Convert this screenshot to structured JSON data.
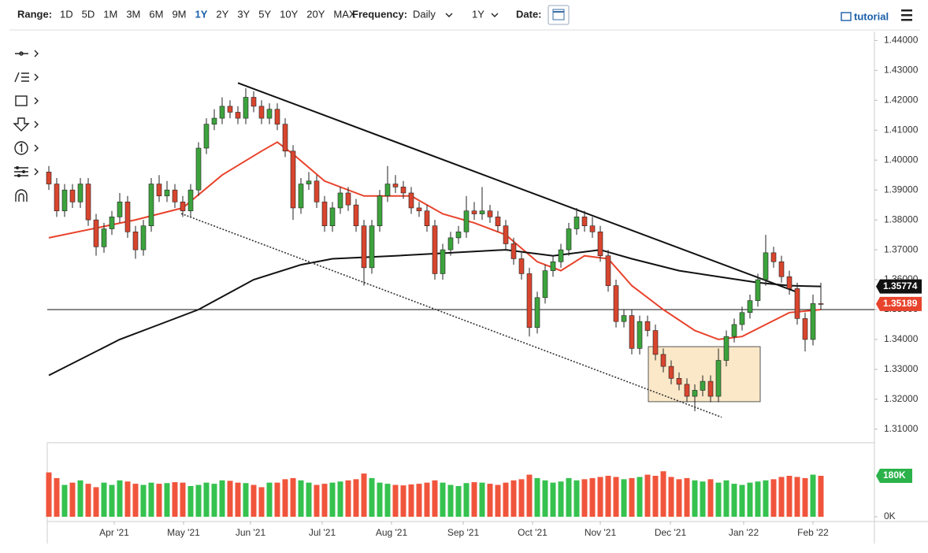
{
  "toolbar": {
    "range_label": "Range:",
    "ranges": [
      "1D",
      "5D",
      "1M",
      "3M",
      "6M",
      "9M",
      "1Y",
      "2Y",
      "3Y",
      "5Y",
      "10Y",
      "20Y",
      "MAX"
    ],
    "active_range": "1Y",
    "active_color": "#1a5fa8",
    "frequency_label": "Frequency:",
    "frequency": "Daily",
    "period": "1Y",
    "date_label": "Date:",
    "tutorial": "tutorial"
  },
  "chart_data": {
    "type": "candlestick",
    "xlim": [
      -0.2,
      104.8
    ],
    "xticks": [
      {
        "value": 8.3,
        "label": "Apr '21"
      },
      {
        "value": 17.1,
        "label": "May '21"
      },
      {
        "value": 25.6,
        "label": "Jun '21"
      },
      {
        "value": 34.7,
        "label": "Jul '21"
      },
      {
        "value": 43.5,
        "label": "Aug '21"
      },
      {
        "value": 52.6,
        "label": "Sep '21"
      },
      {
        "value": 61.4,
        "label": "Oct '21"
      },
      {
        "value": 70,
        "label": "Nov '21"
      },
      {
        "value": 78.9,
        "label": "Dec '21"
      },
      {
        "value": 88.2,
        "label": "Jan '22"
      },
      {
        "value": 97,
        "label": "Feb '22"
      }
    ],
    "ylim": [
      1.306,
      1.443
    ],
    "yticks": [
      {
        "value": 1.31,
        "label": "1.31000"
      },
      {
        "value": 1.32,
        "label": "1.32000"
      },
      {
        "value": 1.33,
        "label": "1.33000"
      },
      {
        "value": 1.34,
        "label": "1.34000"
      },
      {
        "value": 1.35,
        "label": "1.35000"
      },
      {
        "value": 1.36,
        "label": "1.36000"
      },
      {
        "value": 1.37,
        "label": "1.37000"
      },
      {
        "value": 1.38,
        "label": "1.38000"
      },
      {
        "value": 1.39,
        "label": "1.39000"
      },
      {
        "value": 1.4,
        "label": "1.40000"
      },
      {
        "value": 1.41,
        "label": "1.41000"
      },
      {
        "value": 1.42,
        "label": "1.42000"
      },
      {
        "value": 1.43,
        "label": "1.43000"
      },
      {
        "value": 1.44,
        "label": "1.44000"
      }
    ],
    "up_color": "#3da33d",
    "down_color": "#d8452e",
    "open": [
      1.396,
      1.392,
      1.383,
      1.39,
      1.386,
      1.392,
      1.38,
      1.371,
      1.377,
      1.381,
      1.386,
      1.376,
      1.37,
      1.378,
      1.392,
      1.388,
      1.39,
      1.386,
      1.383,
      1.39,
      1.404,
      1.412,
      1.414,
      1.418,
      1.416,
      1.414,
      1.421,
      1.418,
      1.414,
      1.417,
      1.412,
      1.403,
      1.384,
      1.392,
      1.393,
      1.386,
      1.378,
      1.384,
      1.389,
      1.385,
      1.378,
      1.364,
      1.378,
      1.388,
      1.392,
      1.391,
      1.389,
      1.384,
      1.383,
      1.378,
      1.362,
      1.37,
      1.374,
      1.376,
      1.383,
      1.382,
      1.383,
      1.381,
      1.378,
      1.372,
      1.367,
      1.362,
      1.344,
      1.354,
      1.363,
      1.366,
      1.37,
      1.377,
      1.381,
      1.378,
      1.376,
      1.368,
      1.358,
      1.346,
      1.348,
      1.337,
      1.346,
      1.343,
      1.335,
      1.331,
      1.327,
      1.325,
      1.321,
      1.323,
      1.326,
      1.321,
      1.333,
      1.341,
      1.345,
      1.349,
      1.353,
      1.36,
      1.369,
      1.366,
      1.361,
      1.357,
      1.347,
      1.34,
      1.352
    ],
    "high": [
      1.398,
      1.394,
      1.392,
      1.392,
      1.394,
      1.394,
      1.382,
      1.379,
      1.383,
      1.389,
      1.388,
      1.378,
      1.38,
      1.394,
      1.395,
      1.393,
      1.392,
      1.388,
      1.392,
      1.406,
      1.414,
      1.417,
      1.421,
      1.42,
      1.418,
      1.424,
      1.423,
      1.42,
      1.419,
      1.419,
      1.414,
      1.405,
      1.394,
      1.396,
      1.395,
      1.388,
      1.386,
      1.391,
      1.391,
      1.387,
      1.38,
      1.38,
      1.39,
      1.398,
      1.395,
      1.393,
      1.391,
      1.386,
      1.385,
      1.38,
      1.372,
      1.376,
      1.378,
      1.388,
      1.386,
      1.391,
      1.385,
      1.383,
      1.38,
      1.374,
      1.369,
      1.364,
      1.356,
      1.365,
      1.368,
      1.372,
      1.379,
      1.384,
      1.383,
      1.381,
      1.378,
      1.37,
      1.36,
      1.35,
      1.35,
      1.348,
      1.348,
      1.345,
      1.337,
      1.333,
      1.329,
      1.327,
      1.325,
      1.328,
      1.328,
      1.337,
      1.343,
      1.347,
      1.351,
      1.355,
      1.362,
      1.375,
      1.371,
      1.368,
      1.363,
      1.359,
      1.349,
      1.355,
      1.359
    ],
    "low": [
      1.39,
      1.381,
      1.381,
      1.384,
      1.384,
      1.378,
      1.368,
      1.369,
      1.375,
      1.379,
      1.374,
      1.367,
      1.368,
      1.376,
      1.386,
      1.386,
      1.384,
      1.381,
      1.381,
      1.388,
      1.402,
      1.41,
      1.412,
      1.414,
      1.412,
      1.412,
      1.416,
      1.412,
      1.412,
      1.41,
      1.401,
      1.38,
      1.382,
      1.39,
      1.384,
      1.376,
      1.376,
      1.382,
      1.383,
      1.376,
      1.358,
      1.362,
      1.376,
      1.386,
      1.389,
      1.387,
      1.382,
      1.381,
      1.376,
      1.36,
      1.36,
      1.368,
      1.372,
      1.374,
      1.38,
      1.38,
      1.379,
      1.376,
      1.37,
      1.365,
      1.36,
      1.341,
      1.342,
      1.352,
      1.361,
      1.364,
      1.368,
      1.375,
      1.376,
      1.374,
      1.366,
      1.356,
      1.344,
      1.344,
      1.335,
      1.335,
      1.341,
      1.333,
      1.329,
      1.325,
      1.323,
      1.319,
      1.316,
      1.321,
      1.319,
      1.319,
      1.331,
      1.339,
      1.343,
      1.347,
      1.351,
      1.358,
      1.364,
      1.359,
      1.355,
      1.345,
      1.336,
      1.338,
      1.35
    ],
    "close": [
      1.392,
      1.383,
      1.39,
      1.386,
      1.392,
      1.38,
      1.371,
      1.377,
      1.381,
      1.386,
      1.376,
      1.37,
      1.378,
      1.392,
      1.388,
      1.39,
      1.386,
      1.383,
      1.39,
      1.404,
      1.412,
      1.414,
      1.418,
      1.416,
      1.414,
      1.421,
      1.418,
      1.414,
      1.417,
      1.412,
      1.403,
      1.384,
      1.392,
      1.393,
      1.386,
      1.378,
      1.384,
      1.389,
      1.385,
      1.378,
      1.364,
      1.378,
      1.388,
      1.392,
      1.391,
      1.389,
      1.384,
      1.383,
      1.378,
      1.362,
      1.37,
      1.374,
      1.376,
      1.383,
      1.382,
      1.383,
      1.381,
      1.378,
      1.372,
      1.367,
      1.362,
      1.344,
      1.354,
      1.363,
      1.366,
      1.37,
      1.377,
      1.381,
      1.378,
      1.376,
      1.368,
      1.358,
      1.346,
      1.348,
      1.337,
      1.346,
      1.343,
      1.335,
      1.331,
      1.327,
      1.325,
      1.321,
      1.323,
      1.326,
      1.321,
      1.333,
      1.341,
      1.345,
      1.349,
      1.353,
      1.36,
      1.369,
      1.366,
      1.361,
      1.357,
      1.347,
      1.34,
      1.352,
      1.35189
    ],
    "last_price_color": "#e8432c",
    "moving_averages": [
      {
        "color": "#e8432c",
        "x": [
          0,
          11,
          17,
          22,
          27,
          29,
          31,
          35,
          40,
          46,
          50,
          54,
          58,
          62,
          65,
          68,
          71,
          74,
          78,
          82,
          85,
          88,
          91,
          94,
          98
        ],
        "values": [
          1.374,
          1.38,
          1.384,
          1.395,
          1.403,
          1.406,
          1.402,
          1.393,
          1.388,
          1.388,
          1.382,
          1.379,
          1.375,
          1.366,
          1.363,
          1.368,
          1.367,
          1.358,
          1.35,
          1.343,
          1.34,
          1.341,
          1.345,
          1.349,
          1.35
        ]
      },
      {
        "color": "#111111",
        "x": [
          0,
          9,
          14,
          19,
          26,
          32,
          36,
          44,
          51,
          58,
          64,
          70,
          74,
          80,
          85,
          90,
          94,
          98
        ],
        "values": [
          1.328,
          1.34,
          1.345,
          1.35,
          1.36,
          1.365,
          1.367,
          1.368,
          1.369,
          1.37,
          1.368,
          1.37,
          1.367,
          1.363,
          1.361,
          1.359,
          1.358,
          1.35774
        ]
      }
    ],
    "trendlines": [
      {
        "color": "#111111",
        "style": "solid",
        "x": [
          24,
          95
        ],
        "y": [
          1.4258,
          1.3558
        ]
      },
      {
        "color": "#333333",
        "style": "dotted",
        "x": [
          16.8,
          85.4
        ],
        "y": [
          1.3821,
          1.314
        ]
      }
    ],
    "box": {
      "x": [
        76.1,
        90.3
      ],
      "y": [
        1.3192,
        1.3376
      ],
      "color": "#fbe8c8"
    },
    "reference_line": 1.35,
    "volume": {
      "ylim": [
        0,
        315
      ],
      "yticks": [
        {
          "value": 0,
          "label": "0K"
        }
      ],
      "last_label": "180K",
      "label_color": "#2bb24a",
      "up_color": "#35c24f",
      "down_color": "#f0553c",
      "values": [
        195,
        170,
        140,
        150,
        160,
        145,
        130,
        150,
        140,
        160,
        155,
        145,
        140,
        150,
        145,
        148,
        152,
        150,
        135,
        140,
        150,
        145,
        160,
        158,
        150,
        148,
        140,
        130,
        150,
        150,
        165,
        170,
        160,
        150,
        140,
        145,
        150,
        155,
        160,
        165,
        190,
        170,
        150,
        145,
        140,
        138,
        142,
        145,
        150,
        160,
        150,
        140,
        135,
        148,
        152,
        150,
        145,
        140,
        150,
        160,
        165,
        185,
        170,
        160,
        150,
        155,
        170,
        160,
        165,
        170,
        175,
        180,
        175,
        165,
        170,
        175,
        185,
        180,
        200,
        175,
        165,
        170,
        160,
        155,
        165,
        150,
        160,
        145,
        140,
        150,
        155,
        160,
        165,
        175,
        180,
        175,
        170,
        185,
        180
      ]
    }
  }
}
